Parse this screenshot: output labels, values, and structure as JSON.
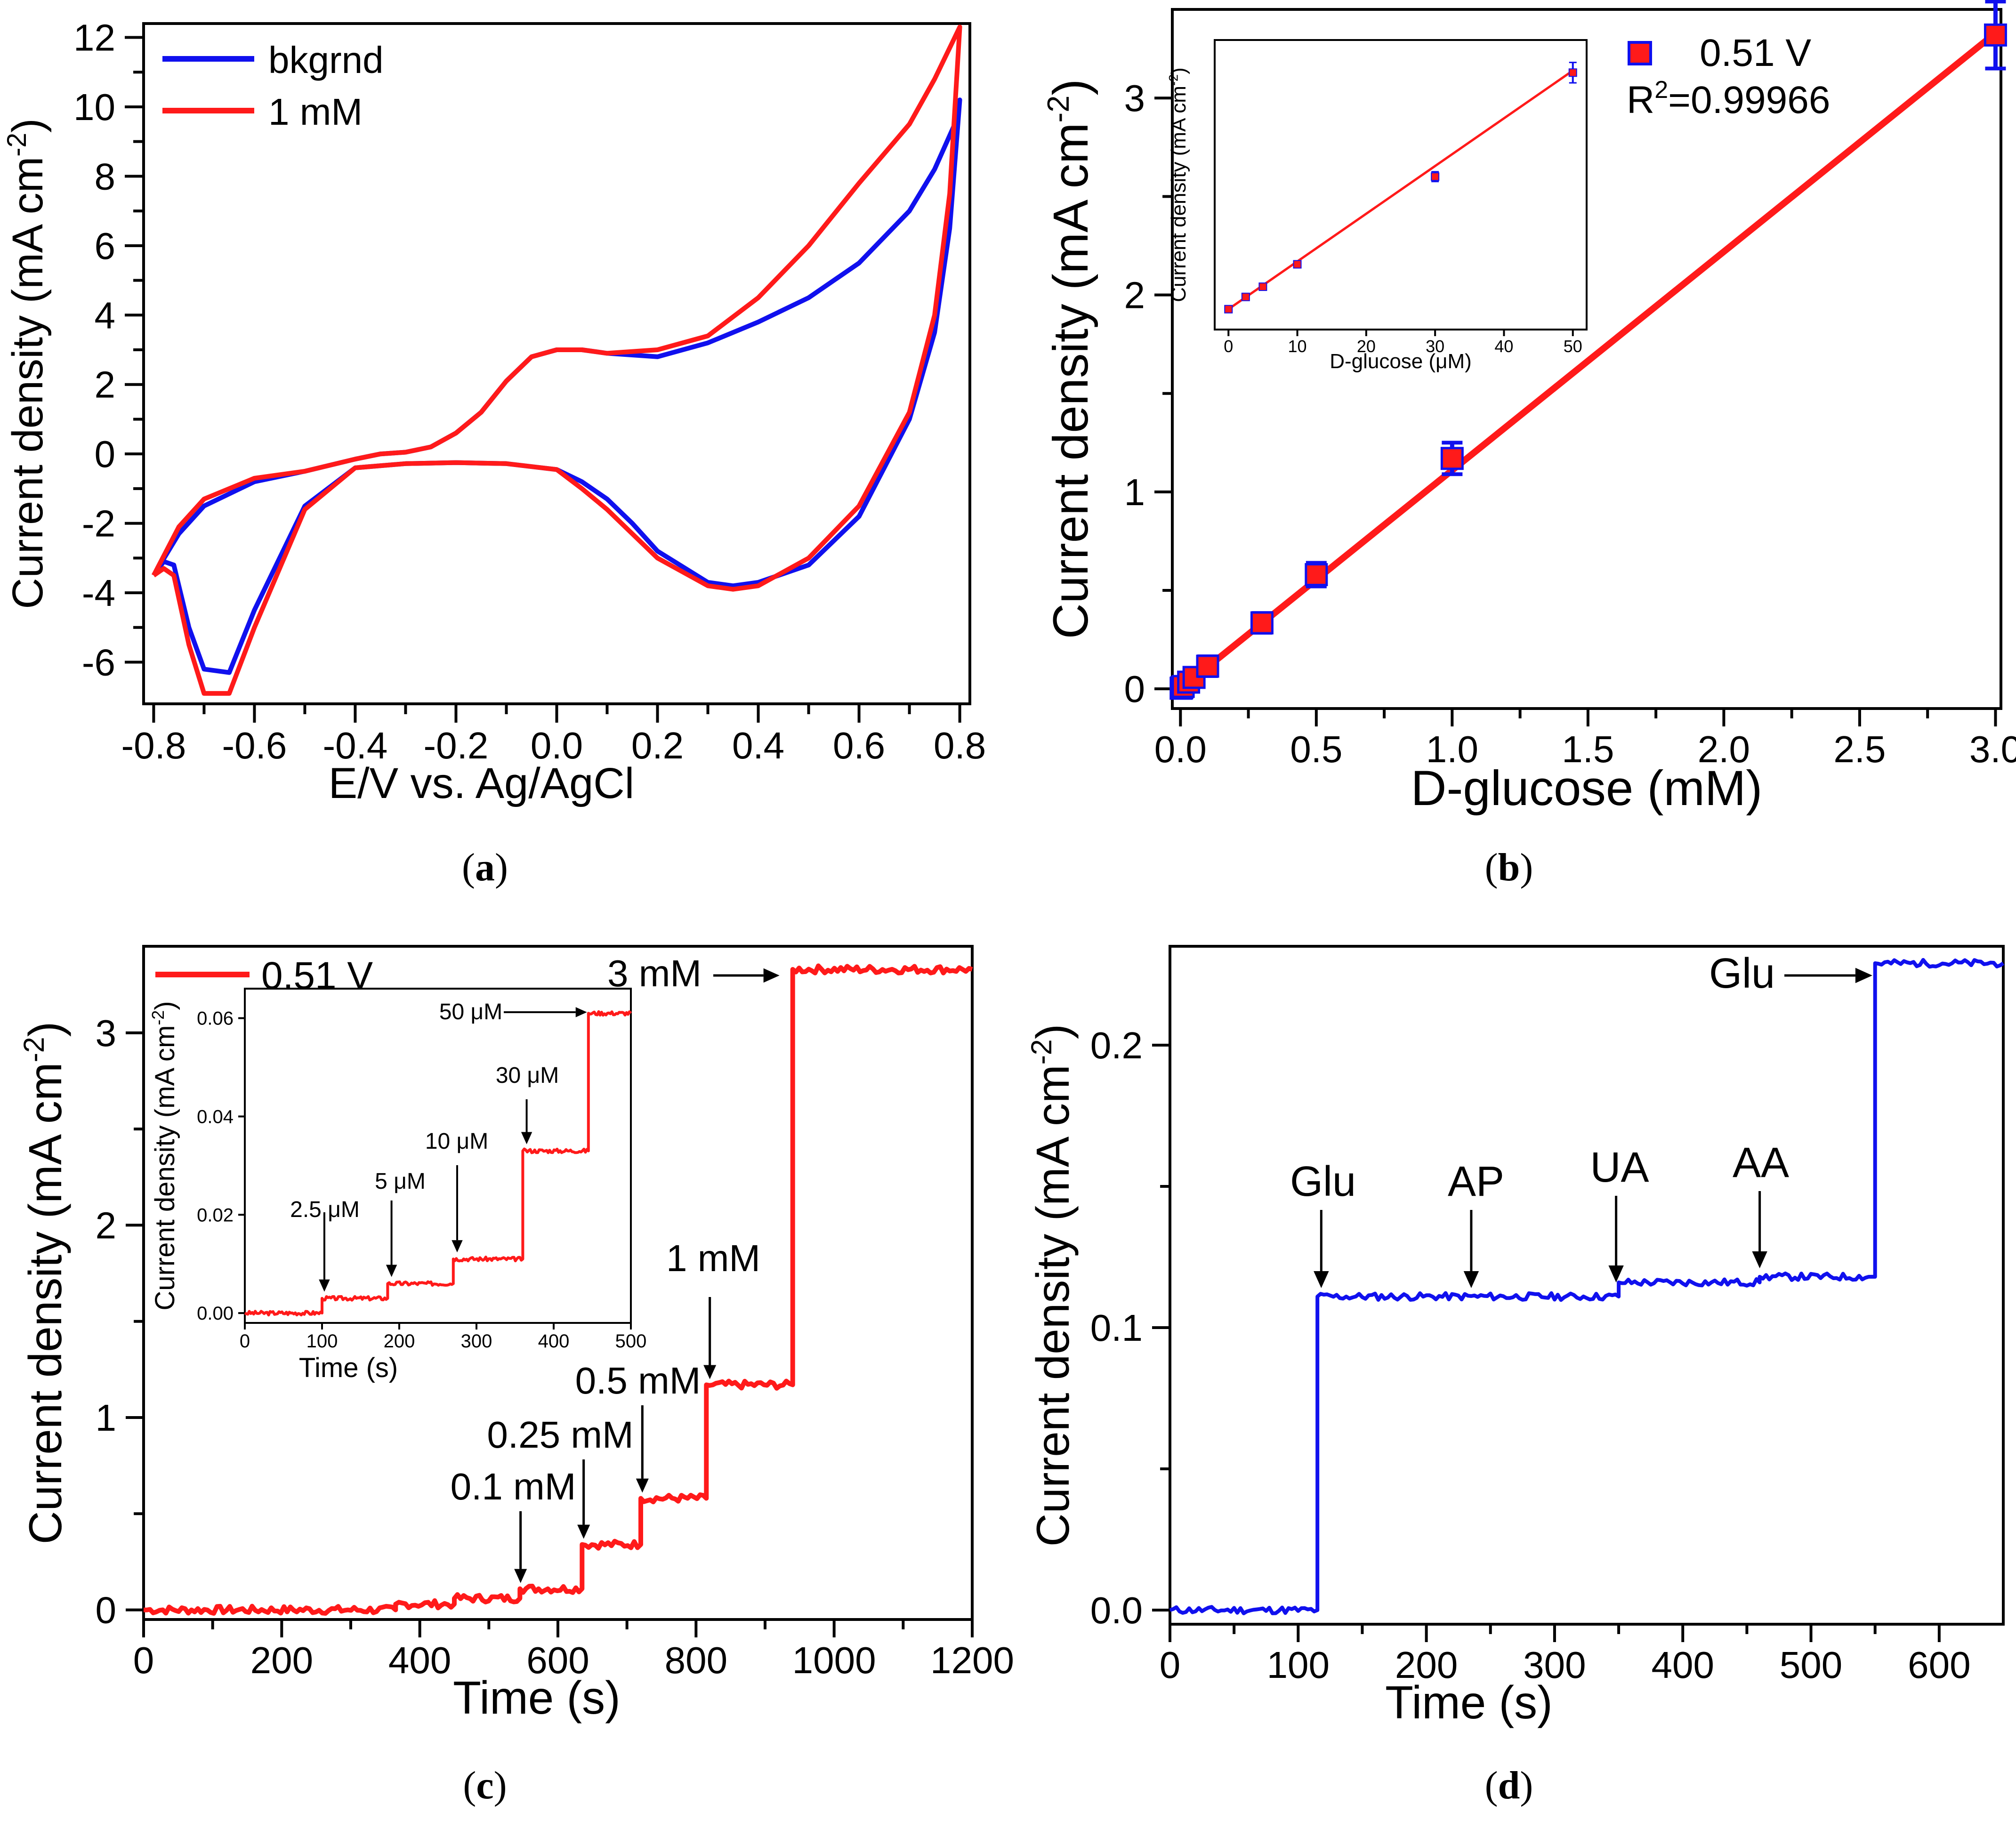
{
  "colors": {
    "blue": "#1010ee",
    "red": "#ff1a1a",
    "black": "#000000"
  },
  "panels": {
    "a": {
      "caption_letter": "a",
      "chart_data": {
        "type": "line",
        "xlabel": "E/V vs. Ag/AgCl",
        "ylabel": "Current density (mA cm",
        "ylabel_sup": "-2",
        "ylabel_close": ")",
        "xlim": [
          -0.82,
          0.82
        ],
        "ylim": [
          -7.2,
          12.4
        ],
        "xticks": [
          -0.8,
          -0.6,
          -0.4,
          -0.2,
          0.0,
          0.2,
          0.4,
          0.6,
          0.8
        ],
        "xtick_labels": [
          "-0.8",
          "-0.6",
          "-0.4",
          "-0.2",
          "0.0",
          "0.2",
          "0.4",
          "0.6",
          "0.8"
        ],
        "yticks": [
          -6,
          -4,
          -2,
          0,
          2,
          4,
          6,
          8,
          10,
          12
        ],
        "ytick_labels": [
          "-6",
          "-4",
          "-2",
          "0",
          "2",
          "4",
          "6",
          "8",
          "10",
          "12"
        ],
        "legend": [
          {
            "label": "bkgrnd",
            "color": "#1010ee"
          },
          {
            "label": "1 mM",
            "color": "#ff1a1a"
          }
        ],
        "series": [
          {
            "name": "bkgrnd",
            "color": "#1010ee",
            "x": [
              -0.8,
              -0.75,
              -0.7,
              -0.6,
              -0.5,
              -0.4,
              -0.35,
              -0.3,
              -0.25,
              -0.2,
              -0.15,
              -0.1,
              -0.05,
              0.0,
              0.05,
              0.1,
              0.2,
              0.3,
              0.4,
              0.5,
              0.6,
              0.7,
              0.75,
              0.79,
              0.8,
              0.78,
              0.75,
              0.7,
              0.6,
              0.5,
              0.4,
              0.35,
              0.3,
              0.2,
              0.15,
              0.1,
              0.05,
              0.0,
              -0.1,
              -0.2,
              -0.3,
              -0.4,
              -0.5,
              -0.6,
              -0.65,
              -0.7,
              -0.73,
              -0.76,
              -0.78,
              -0.8
            ],
            "y": [
              -3.5,
              -2.3,
              -1.5,
              -0.8,
              -0.5,
              -0.15,
              0.0,
              0.05,
              0.2,
              0.6,
              1.2,
              2.1,
              2.8,
              3.0,
              3.0,
              2.9,
              2.8,
              3.2,
              3.8,
              4.5,
              5.5,
              7.0,
              8.2,
              9.5,
              10.2,
              6.5,
              3.5,
              1.0,
              -1.8,
              -3.2,
              -3.7,
              -3.8,
              -3.7,
              -2.8,
              -2.0,
              -1.3,
              -0.8,
              -0.45,
              -0.28,
              -0.25,
              -0.28,
              -0.4,
              -1.5,
              -4.5,
              -6.3,
              -6.2,
              -5.0,
              -3.2,
              -3.1,
              -3.5
            ]
          },
          {
            "name": "1 mM",
            "color": "#ff1a1a",
            "x": [
              -0.8,
              -0.75,
              -0.7,
              -0.6,
              -0.5,
              -0.4,
              -0.35,
              -0.3,
              -0.25,
              -0.2,
              -0.15,
              -0.1,
              -0.05,
              0.0,
              0.05,
              0.1,
              0.2,
              0.3,
              0.4,
              0.5,
              0.6,
              0.7,
              0.75,
              0.79,
              0.8,
              0.78,
              0.75,
              0.7,
              0.6,
              0.5,
              0.4,
              0.35,
              0.3,
              0.2,
              0.15,
              0.1,
              0.05,
              0.0,
              -0.1,
              -0.2,
              -0.3,
              -0.4,
              -0.5,
              -0.6,
              -0.65,
              -0.7,
              -0.73,
              -0.76,
              -0.78,
              -0.8
            ],
            "y": [
              -3.5,
              -2.1,
              -1.3,
              -0.7,
              -0.5,
              -0.15,
              0.0,
              0.05,
              0.2,
              0.6,
              1.2,
              2.1,
              2.8,
              3.0,
              3.0,
              2.9,
              3.0,
              3.4,
              4.5,
              6.0,
              7.8,
              9.5,
              10.8,
              12.0,
              12.3,
              7.5,
              4.0,
              1.2,
              -1.5,
              -3.0,
              -3.8,
              -3.9,
              -3.8,
              -3.0,
              -2.3,
              -1.6,
              -1.0,
              -0.45,
              -0.28,
              -0.25,
              -0.28,
              -0.4,
              -1.6,
              -5.0,
              -6.9,
              -6.9,
              -5.5,
              -3.5,
              -3.3,
              -3.5
            ]
          }
        ]
      }
    },
    "b": {
      "caption_letter": "b",
      "chart_data": {
        "type": "scatter",
        "xlabel": "D-glucose (mM)",
        "ylabel": "Current density (mA cm",
        "ylabel_sup": "-2",
        "ylabel_close": ")",
        "xlim": [
          -0.03,
          3.02
        ],
        "ylim": [
          -0.1,
          3.45
        ],
        "xticks": [
          0.0,
          0.5,
          1.0,
          1.5,
          2.0,
          2.5,
          3.0
        ],
        "xtick_labels": [
          "0.0",
          "0.5",
          "1.0",
          "1.5",
          "2.0",
          "2.5",
          "3.0"
        ],
        "yticks": [
          0,
          1,
          2,
          3
        ],
        "ytick_labels": [
          "0",
          "1",
          "2",
          "3"
        ],
        "legend_label": "0.51 V",
        "r2_label": "R",
        "r2_sup": "2",
        "r2_value": "=0.99966",
        "points": {
          "x": [
            0.0025,
            0.005,
            0.01,
            0.03,
            0.05,
            0.1,
            0.3,
            0.5,
            1.0,
            3.0
          ],
          "y": [
            0.003,
            0.006,
            0.012,
            0.034,
            0.058,
            0.115,
            0.335,
            0.58,
            1.17,
            3.32
          ],
          "err": [
            0.03,
            0.03,
            0.03,
            0.04,
            0.04,
            0.05,
            0.05,
            0.06,
            0.08,
            0.17
          ]
        },
        "fit": {
          "x": [
            0.0,
            3.0
          ],
          "y": [
            0.0,
            3.33
          ]
        },
        "inset": {
          "xlabel": "D-glucose (μM)",
          "ylabel": "Current density (mA cm",
          "ylabel_sup": "-2",
          "ylabel_close": ")",
          "xlim": [
            -2,
            52
          ],
          "ylim": [
            -0.005,
            0.066
          ],
          "xticks": [
            0,
            10,
            20,
            30,
            40,
            50
          ],
          "xtick_labels": [
            "0",
            "10",
            "20",
            "30",
            "40",
            "50"
          ],
          "points": {
            "x": [
              0,
              2.5,
              5,
              10,
              30,
              50
            ],
            "y": [
              0.0,
              0.003,
              0.0055,
              0.011,
              0.0325,
              0.058
            ],
            "err": [
              0.0005,
              0.0005,
              0.0006,
              0.0007,
              0.0012,
              0.0025
            ]
          },
          "fit": {
            "x": [
              0,
              50
            ],
            "y": [
              0.0,
              0.0585
            ]
          }
        }
      }
    },
    "c": {
      "caption_letter": "c",
      "chart_data": {
        "type": "line",
        "xlabel": "Time (s)",
        "ylabel": "Current density (mA cm",
        "ylabel_sup": "-2",
        "ylabel_close": ")",
        "xlim": [
          0,
          1200
        ],
        "ylim": [
          -0.05,
          3.45
        ],
        "xticks": [
          0,
          200,
          400,
          600,
          800,
          1000,
          1200
        ],
        "xtick_labels": [
          "0",
          "200",
          "400",
          "600",
          "800",
          "1000",
          "1200"
        ],
        "yticks": [
          0,
          1,
          2,
          3
        ],
        "ytick_labels": [
          "0",
          "1",
          "2",
          "3"
        ],
        "legend_label": "0.51 V",
        "steps": {
          "t": [
            0,
            365,
            450,
            545,
            635,
            720,
            815,
            940
          ],
          "level": [
            0.0,
            0.03,
            0.06,
            0.11,
            0.34,
            0.58,
            1.17,
            3.33
          ]
        },
        "annotations": [
          {
            "label": "0.1 mM",
            "x": 550,
            "y": 0.11
          },
          {
            "label": "0.25 mM",
            "x": 640,
            "y": 0.34
          },
          {
            "label": "0.5 mM",
            "x": 725,
            "y": 0.58
          },
          {
            "label": "1 mM",
            "x": 820,
            "y": 1.17
          },
          {
            "label": "3 mM",
            "x": 955,
            "y": 3.37
          }
        ],
        "inset": {
          "xlabel": "Time (s)",
          "ylabel": "Current density (mA cm",
          "ylabel_sup": "-2",
          "ylabel_close": ")",
          "xlim": [
            0,
            500
          ],
          "ylim": [
            -0.002,
            0.066
          ],
          "xticks": [
            0,
            100,
            200,
            300,
            400,
            500
          ],
          "xtick_labels": [
            "0",
            "100",
            "200",
            "300",
            "400",
            "500"
          ],
          "yticks": [
            0.0,
            0.02,
            0.04,
            0.06
          ],
          "ytick_labels": [
            "0.00",
            "0.02",
            "0.04",
            "0.06"
          ],
          "steps": {
            "t": [
              0,
              100,
              185,
              270,
              360,
              445
            ],
            "level": [
              0.0,
              0.003,
              0.006,
              0.011,
              0.033,
              0.061
            ]
          },
          "annotations": [
            {
              "label": "2.5 μM",
              "x": 103,
              "y": 0.003
            },
            {
              "label": "5 μM",
              "x": 190,
              "y": 0.006
            },
            {
              "label": "10 μM",
              "x": 275,
              "y": 0.011
            },
            {
              "label": "30 μM",
              "x": 365,
              "y": 0.033
            },
            {
              "label": "50 μM",
              "x": 448,
              "y": 0.061
            }
          ]
        }
      }
    },
    "d": {
      "caption_letter": "d",
      "chart_data": {
        "type": "line",
        "xlabel": "Time (s)",
        "ylabel": "Current density (mA cm",
        "ylabel_sup": "-2",
        "ylabel_close": ")",
        "xlim": [
          0,
          650
        ],
        "ylim": [
          -0.005,
          0.235
        ],
        "xticks": [
          0,
          100,
          200,
          300,
          400,
          500,
          600
        ],
        "xtick_labels": [
          "0",
          "100",
          "200",
          "300",
          "400",
          "500",
          "600"
        ],
        "yticks": [
          0.0,
          0.1,
          0.2
        ],
        "ytick_labels": [
          "0.0",
          "0.1",
          "0.2"
        ],
        "steps": {
          "t": [
            0,
            115,
            350,
            460,
            550
          ],
          "level": [
            0.0,
            0.111,
            0.116,
            0.118,
            0.229
          ]
        },
        "annotations": [
          {
            "label": "Glu",
            "x": 118,
            "y": 0.112,
            "color": "#1010ee"
          },
          {
            "label": "AP",
            "x": 235,
            "y": 0.112,
            "color": "#000000"
          },
          {
            "label": "UA",
            "x": 348,
            "y": 0.114,
            "color": "#000000"
          },
          {
            "label": "AA",
            "x": 460,
            "y": 0.119,
            "color": "#000000"
          },
          {
            "label": "Glu",
            "x": 553,
            "y": 0.229,
            "color": "#1010ee"
          }
        ]
      }
    }
  }
}
